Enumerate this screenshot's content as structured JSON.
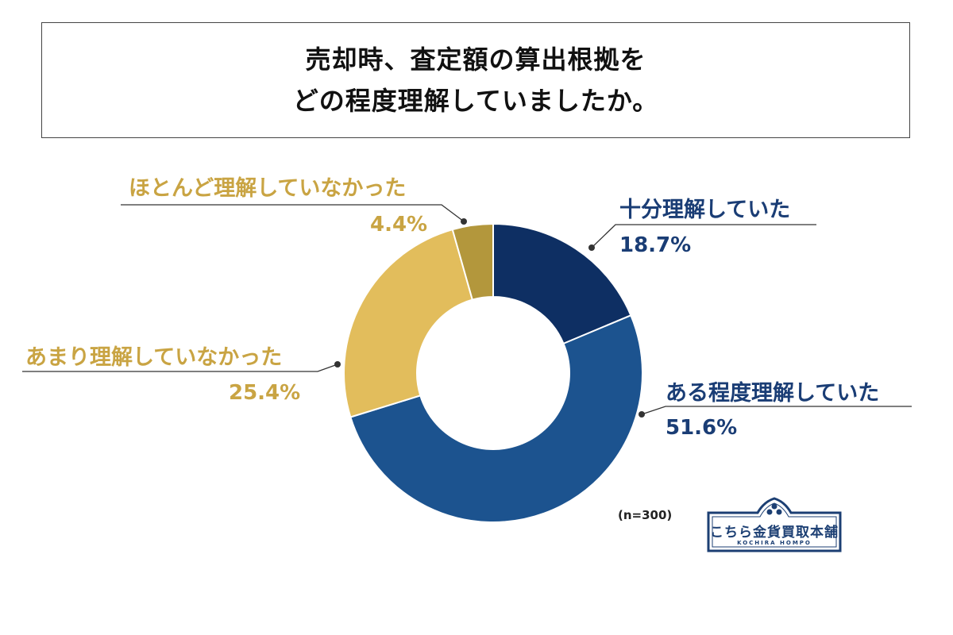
{
  "title": {
    "line1": "売却時、査定額の算出根拠を",
    "line2": "どの程度理解していましたか。"
  },
  "chart_data": {
    "type": "pie",
    "donut": true,
    "title": "売却時、査定額の算出根拠をどの程度理解していましたか。",
    "n_label": "(n=300)",
    "slices": [
      {
        "label": "十分理解していた",
        "value": 18.7,
        "display": "18.7%",
        "color": "#0e2f63"
      },
      {
        "label": "ある程度理解していた",
        "value": 51.6,
        "display": "51.6%",
        "color": "#1c538f"
      },
      {
        "label": "あまり理解していなかった",
        "value": 25.4,
        "display": "25.4%",
        "color": "#e2bd5c"
      },
      {
        "label": "ほとんど理解していなかった",
        "value": 4.4,
        "display": "4.4%",
        "color": "#b3973c"
      }
    ],
    "label_colors": {
      "navy": "#1a3d75",
      "gold": "#c9a443"
    }
  },
  "logo": {
    "name": "こちら金貨買取本舗",
    "sub": "KOCHIRA HOMPO"
  }
}
